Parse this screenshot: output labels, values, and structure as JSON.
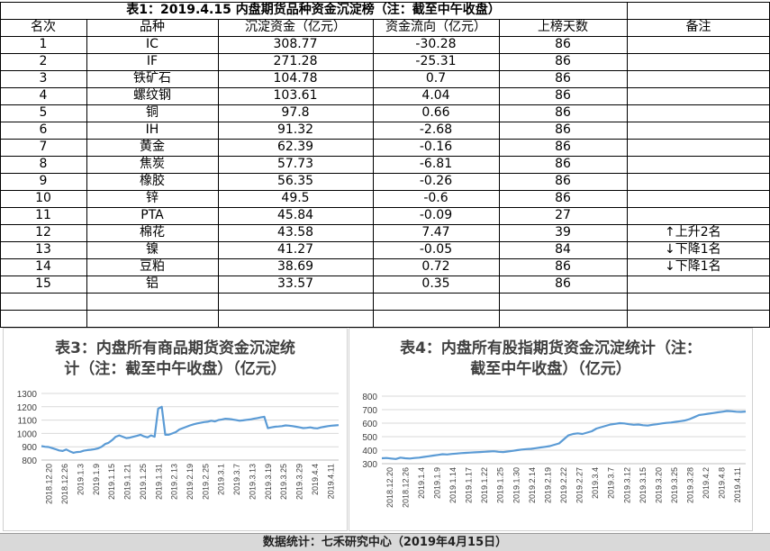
{
  "table": {
    "title": "表1：2019.4.15 内盘期货品种资金沉淀榜（注：截至中午收盘）",
    "headers": [
      "名次",
      "品种",
      "沉淀资金（亿元）",
      "资金流向（亿元）",
      "上榜天数",
      "备注"
    ],
    "rows": [
      {
        "rank": "1",
        "name": "IC",
        "capital": "308.77",
        "flow": "-30.28",
        "days": "86",
        "note": ""
      },
      {
        "rank": "2",
        "name": "IF",
        "capital": "271.28",
        "flow": "-25.31",
        "days": "86",
        "note": ""
      },
      {
        "rank": "3",
        "name": "铁矿石",
        "capital": "104.78",
        "flow": "0.7",
        "days": "86",
        "note": ""
      },
      {
        "rank": "4",
        "name": "螺纹钢",
        "capital": "103.61",
        "flow": "4.04",
        "days": "86",
        "note": ""
      },
      {
        "rank": "5",
        "name": "铜",
        "capital": "97.8",
        "flow": "0.66",
        "days": "86",
        "note": ""
      },
      {
        "rank": "6",
        "name": "IH",
        "capital": "91.32",
        "flow": "-2.68",
        "days": "86",
        "note": ""
      },
      {
        "rank": "7",
        "name": "黄金",
        "capital": "62.39",
        "flow": "-0.16",
        "days": "86",
        "note": ""
      },
      {
        "rank": "8",
        "name": "焦炭",
        "capital": "57.73",
        "flow": "-6.81",
        "days": "86",
        "note": ""
      },
      {
        "rank": "9",
        "name": "橡胶",
        "capital": "56.35",
        "flow": "-0.26",
        "days": "86",
        "note": ""
      },
      {
        "rank": "10",
        "name": "锌",
        "capital": "49.5",
        "flow": "-0.6",
        "days": "86",
        "note": ""
      },
      {
        "rank": "11",
        "name": "PTA",
        "capital": "45.84",
        "flow": "-0.09",
        "days": "27",
        "note": ""
      },
      {
        "rank": "12",
        "name": "棉花",
        "capital": "43.58",
        "flow": "7.47",
        "days": "39",
        "note": "↑上升2名"
      },
      {
        "rank": "13",
        "name": "镍",
        "capital": "41.27",
        "flow": "-0.05",
        "days": "84",
        "note": "↓下降1名"
      },
      {
        "rank": "14",
        "name": "豆粕",
        "capital": "38.69",
        "flow": "0.72",
        "days": "86",
        "note": "↓下降1名"
      },
      {
        "rank": "15",
        "name": "铝",
        "capital": "33.57",
        "flow": "0.35",
        "days": "86",
        "note": ""
      }
    ]
  },
  "chart_data": [
    {
      "type": "line",
      "title": "表3：内盘所有商品期货资金沉淀统计（注：截至中午收盘）（亿元）",
      "title_line1": "表3：内盘所有商品期货资金沉淀统",
      "title_line2": "计（注：截至中午收盘）（亿元）",
      "x_ticks": [
        "2018.12.20",
        "2018.12.26",
        "2019.1.3",
        "2019.1.9",
        "2019.1.15",
        "2019.1.21",
        "2019.1.25",
        "2019.1.31",
        "2019.2.13",
        "2019.2.19",
        "2019.2.25",
        "2019.3.1",
        "2019.3.7",
        "2019.3.13",
        "2019.3.19",
        "2019.3.25",
        "2019.3.29",
        "2019.4.4",
        "2019.4.11"
      ],
      "y_ticks": [
        "800",
        "900",
        "1000",
        "1100",
        "1200",
        "1300"
      ],
      "ylim": [
        800,
        1300
      ],
      "color": "#5b9bd5",
      "values": [
        905,
        900,
        898,
        890,
        882,
        872,
        868,
        880,
        866,
        855,
        860,
        862,
        870,
        875,
        878,
        882,
        888,
        900,
        920,
        930,
        950,
        975,
        985,
        975,
        965,
        968,
        975,
        982,
        990,
        978,
        970,
        985,
        975,
        1185,
        1200,
        990,
        990,
        1000,
        1010,
        1030,
        1040,
        1050,
        1060,
        1068,
        1075,
        1080,
        1085,
        1088,
        1095,
        1090,
        1100,
        1105,
        1110,
        1108,
        1105,
        1100,
        1095,
        1098,
        1102,
        1105,
        1110,
        1115,
        1120,
        1125,
        1040,
        1045,
        1050,
        1052,
        1055,
        1060,
        1058,
        1055,
        1050,
        1045,
        1040,
        1042,
        1045,
        1040,
        1038,
        1045,
        1050,
        1055,
        1058,
        1060,
        1062
      ]
    },
    {
      "type": "line",
      "title": "表4：内盘所有股指期货资金沉淀统计（注：截至中午收盘）（亿元）",
      "title_line1": "表4：内盘所有股指期货资金沉淀统计（注：",
      "title_line2": "截至中午收盘）（亿元）",
      "x_ticks": [
        "2018.12.20",
        "2018.12.26",
        "2019.1.4",
        "2019.1.9",
        "2019.1.14",
        "2019.1.17",
        "2019.1.22",
        "2019.1.25",
        "2019.1.30",
        "2019.2.14",
        "2019.2.19",
        "2019.2.22",
        "2019.2.27",
        "2019.3.4",
        "2019.3.7",
        "2019.3.12",
        "2019.3.15",
        "2019.3.20",
        "2019.3.25",
        "2019.3.28",
        "2019.4.2",
        "2019.4.8",
        "2019.4.11"
      ],
      "y_ticks": [
        "300",
        "400",
        "500",
        "600",
        "700",
        "800"
      ],
      "ylim": [
        300,
        800
      ],
      "color": "#5b9bd5",
      "values": [
        340,
        342,
        338,
        335,
        345,
        340,
        338,
        342,
        345,
        350,
        355,
        360,
        365,
        370,
        368,
        372,
        375,
        378,
        380,
        382,
        384,
        386,
        388,
        390,
        392,
        388,
        386,
        390,
        395,
        400,
        405,
        408,
        410,
        415,
        420,
        425,
        430,
        440,
        450,
        480,
        510,
        520,
        525,
        520,
        530,
        540,
        560,
        570,
        580,
        590,
        595,
        600,
        598,
        592,
        588,
        590,
        585,
        582,
        588,
        592,
        598,
        602,
        605,
        610,
        615,
        620,
        630,
        645,
        660,
        665,
        670,
        675,
        680,
        685,
        690,
        688,
        685,
        683,
        686
      ]
    }
  ],
  "footer": "数据统计：七禾研究中心（2019年4月15日）"
}
